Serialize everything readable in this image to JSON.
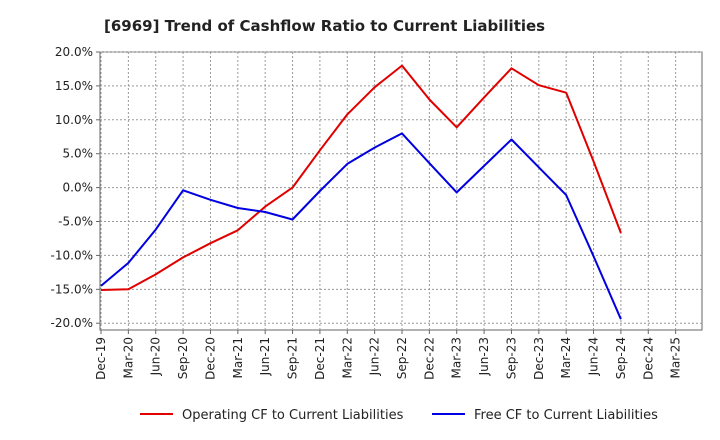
{
  "chart_data": {
    "type": "line",
    "title": "[6969]  Trend of Cashflow Ratio to Current Liabilities",
    "xlabel": "",
    "ylabel": "",
    "categories": [
      "Dec-19",
      "Mar-20",
      "Jun-20",
      "Sep-20",
      "Dec-20",
      "Mar-21",
      "Jun-21",
      "Sep-21",
      "Dec-21",
      "Mar-22",
      "Jun-22",
      "Sep-22",
      "Dec-22",
      "Mar-23",
      "Jun-23",
      "Sep-23",
      "Dec-23",
      "Mar-24",
      "Jun-24",
      "Sep-24",
      "Dec-24",
      "Mar-25"
    ],
    "y_ticks": [
      "20.0%",
      "15.0%",
      "10.0%",
      "5.0%",
      "0.0%",
      "-5.0%",
      "-10.0%",
      "-15.0%",
      "-20.0%"
    ],
    "ylim": [
      -21,
      20
    ],
    "grid": true,
    "legend_position": "bottom",
    "series": [
      {
        "name": "Operating CF to Current Liabilities",
        "color": "#e00000",
        "values": [
          -15.1,
          -15.0,
          -12.8,
          -10.3,
          -8.2,
          -6.3,
          -2.8,
          0.0,
          5.5,
          10.8,
          14.8,
          18.0,
          13.0,
          8.9,
          13.3,
          17.6,
          15.1,
          14.0,
          3.9,
          -6.7,
          null,
          null
        ]
      },
      {
        "name": "Free CF to Current Liabilities",
        "color": "#0000e0",
        "values": [
          -14.5,
          -11.1,
          -6.2,
          -0.4,
          -1.8,
          -3.0,
          -3.6,
          -4.7,
          -0.5,
          3.5,
          5.9,
          8.0,
          3.6,
          -0.7,
          3.2,
          7.1,
          3.0,
          -1.1,
          -10.1,
          -19.4,
          null,
          null
        ]
      }
    ]
  }
}
